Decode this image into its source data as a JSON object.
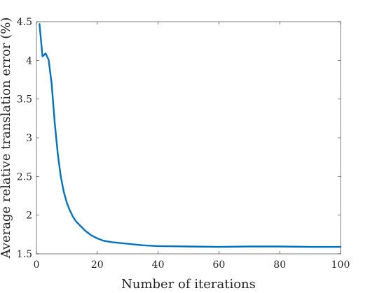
{
  "chart_data": {
    "type": "line",
    "title": "",
    "xlabel": "Number of iterations",
    "ylabel": "Average relative translation error (%)",
    "xlim": [
      0,
      100
    ],
    "ylim": [
      1.5,
      4.5
    ],
    "xticks": [
      0,
      20,
      40,
      60,
      80,
      100
    ],
    "xtick_labels": [
      "0",
      "20",
      "40",
      "60",
      "80",
      "100"
    ],
    "yticks": [
      1.5,
      2,
      2.5,
      3,
      3.5,
      4,
      4.5
    ],
    "ytick_labels": [
      "1.5",
      "2",
      "2.5",
      "3",
      "3.5",
      "4",
      "4.5"
    ],
    "grid": false,
    "colors": {
      "series": "#0072BD",
      "axes": "#262626"
    },
    "series": [
      {
        "x": [
          1,
          2,
          3,
          4,
          5,
          6,
          7,
          8,
          9,
          10,
          11,
          12,
          13,
          14,
          15,
          16,
          18,
          20,
          22,
          25,
          30,
          35,
          40,
          50,
          60,
          70,
          80,
          90,
          100
        ],
        "y": [
          4.47,
          4.05,
          4.09,
          4.01,
          3.7,
          3.2,
          2.8,
          2.5,
          2.3,
          2.16,
          2.06,
          1.98,
          1.92,
          1.88,
          1.84,
          1.8,
          1.74,
          1.7,
          1.67,
          1.65,
          1.63,
          1.61,
          1.6,
          1.595,
          1.59,
          1.595,
          1.595,
          1.59,
          1.59
        ]
      }
    ]
  }
}
